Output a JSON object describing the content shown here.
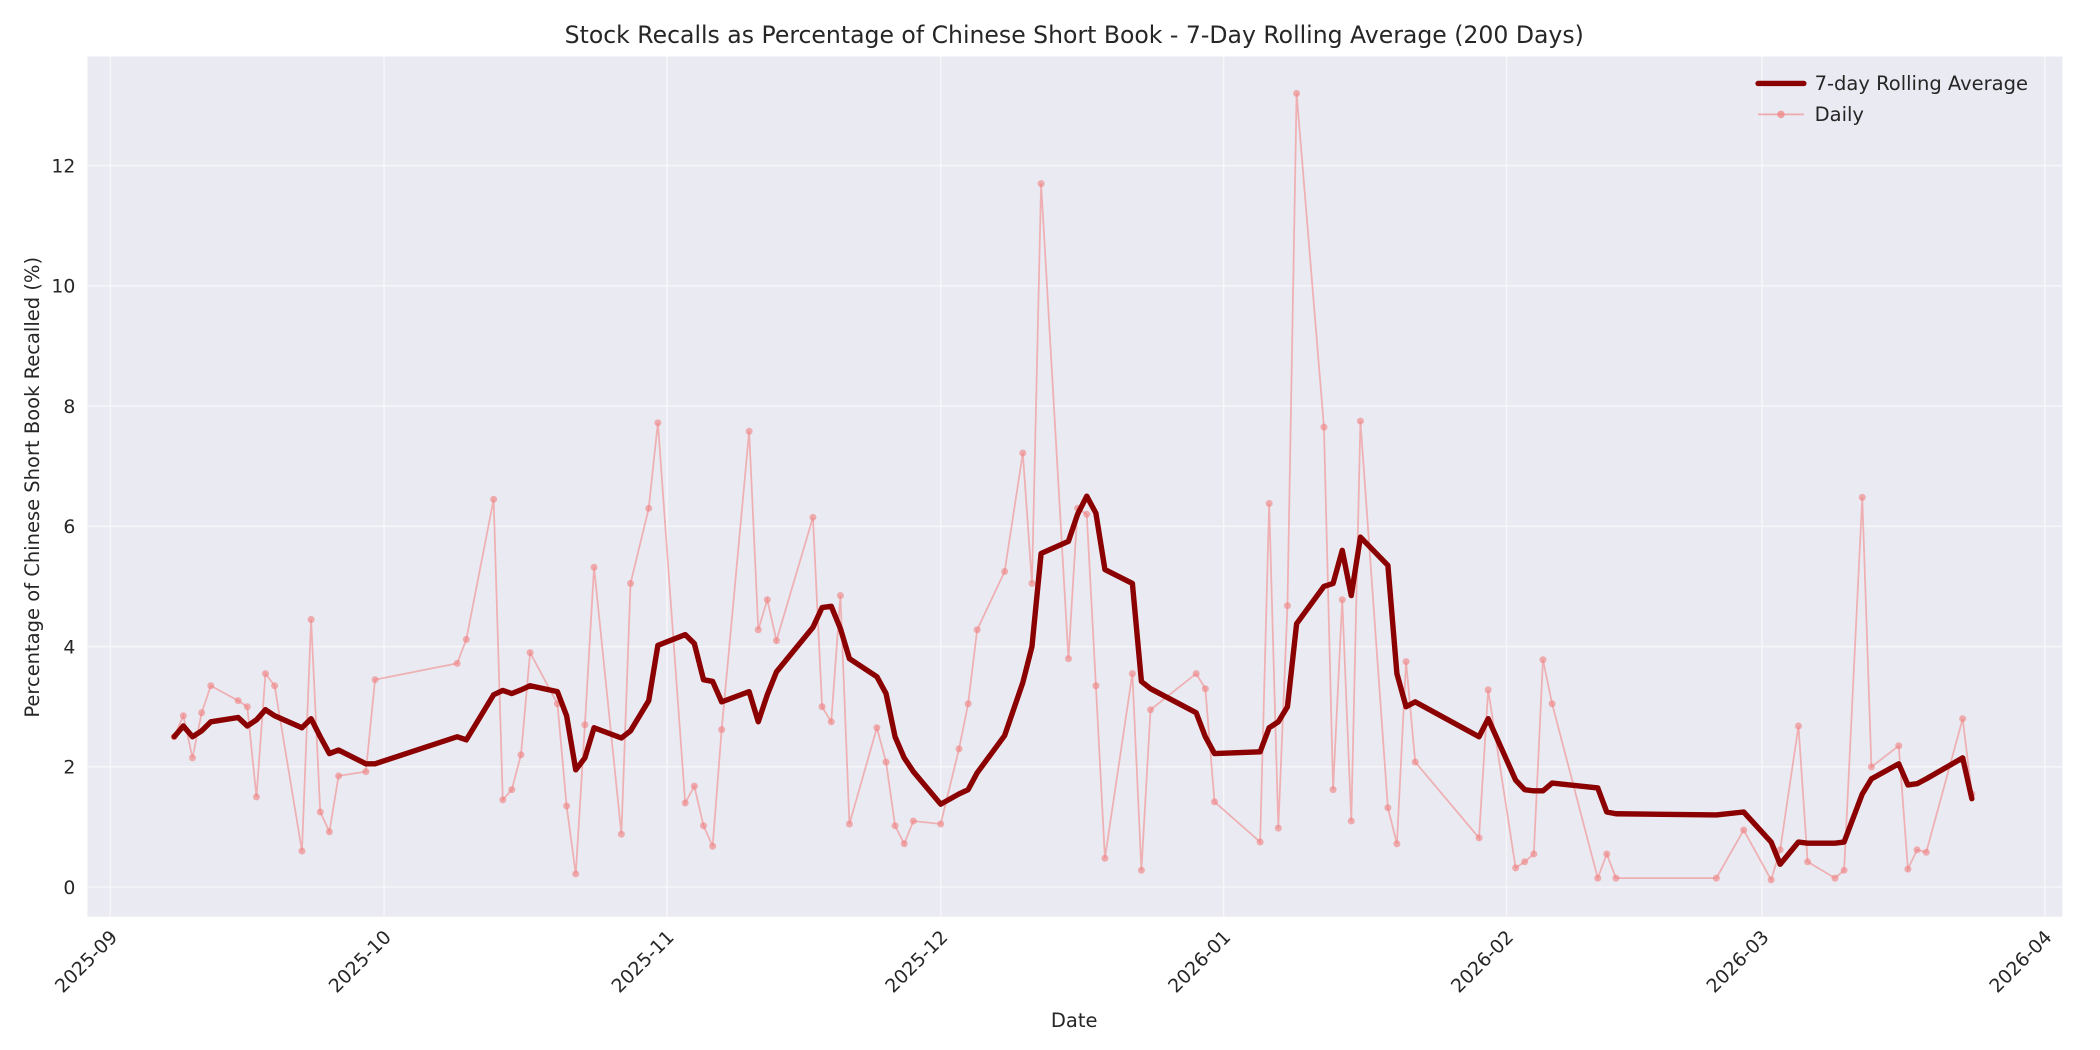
{
  "chart_data": {
    "type": "line",
    "title": "Stock Recalls as Percentage of Chinese Short Book - 7-Day Rolling Average (200 Days)",
    "xlabel": "Date",
    "ylabel": "Percentage of Chinese Short Book Recalled (%)",
    "ylim": [
      -0.5,
      13.9
    ],
    "xlim": [
      "2025-08-29",
      "2026-04-03"
    ],
    "grid": true,
    "legend_position": "upper right",
    "x_ticks": [
      "2025-09",
      "2025-10",
      "2025-11",
      "2025-12",
      "2026-01",
      "2026-02",
      "2026-03",
      "2026-04"
    ],
    "y_ticks": [
      0,
      2,
      4,
      6,
      8,
      10,
      12
    ],
    "colors": {
      "rolling": "#8b0000",
      "daily": "#f08080",
      "plot_bg": "#eaeaf2",
      "grid": "#f5f5f8"
    },
    "x": [
      "2025-09-08",
      "2025-09-09",
      "2025-09-10",
      "2025-09-11",
      "2025-09-12",
      "2025-09-15",
      "2025-09-16",
      "2025-09-17",
      "2025-09-18",
      "2025-09-19",
      "2025-09-22",
      "2025-09-23",
      "2025-09-24",
      "2025-09-25",
      "2025-09-26",
      "2025-09-29",
      "2025-09-30",
      "2025-10-09",
      "2025-10-10",
      "2025-10-13",
      "2025-10-14",
      "2025-10-15",
      "2025-10-16",
      "2025-10-17",
      "2025-10-20",
      "2025-10-21",
      "2025-10-22",
      "2025-10-23",
      "2025-10-24",
      "2025-10-27",
      "2025-10-28",
      "2025-10-30",
      "2025-10-31",
      "2025-11-03",
      "2025-11-04",
      "2025-11-05",
      "2025-11-06",
      "2025-11-07",
      "2025-11-10",
      "2025-11-11",
      "2025-11-12",
      "2025-11-13",
      "2025-11-17",
      "2025-11-18",
      "2025-11-19",
      "2025-11-20",
      "2025-11-21",
      "2025-11-24",
      "2025-11-25",
      "2025-11-26",
      "2025-11-27",
      "2025-11-28",
      "2025-12-01",
      "2025-12-03",
      "2025-12-04",
      "2025-12-05",
      "2025-12-08",
      "2025-12-10",
      "2025-12-11",
      "2025-12-12",
      "2025-12-15",
      "2025-12-16",
      "2025-12-17",
      "2025-12-18",
      "2025-12-19",
      "2025-12-22",
      "2025-12-23",
      "2025-12-24",
      "2025-12-29",
      "2025-12-30",
      "2025-12-31",
      "2026-01-05",
      "2026-01-06",
      "2026-01-07",
      "2026-01-08",
      "2026-01-09",
      "2026-01-12",
      "2026-01-13",
      "2026-01-14",
      "2026-01-15",
      "2026-01-16",
      "2026-01-19",
      "2026-01-20",
      "2026-01-21",
      "2026-01-22",
      "2026-01-29",
      "2026-01-30",
      "2026-02-02",
      "2026-02-03",
      "2026-02-04",
      "2026-02-05",
      "2026-02-06",
      "2026-02-11",
      "2026-02-12",
      "2026-02-13",
      "2026-02-24",
      "2026-02-27",
      "2026-03-02",
      "2026-03-03",
      "2026-03-05",
      "2026-03-06",
      "2026-03-09",
      "2026-03-10",
      "2026-03-12",
      "2026-03-13",
      "2026-03-16",
      "2026-03-17",
      "2026-03-18",
      "2026-03-19",
      "2026-03-23",
      "2026-03-24"
    ],
    "series": [
      {
        "name": "7-day Rolling Average",
        "values": [
          2.5,
          2.68,
          2.5,
          2.6,
          2.75,
          2.82,
          2.68,
          2.78,
          2.95,
          2.85,
          2.65,
          2.8,
          2.5,
          2.22,
          2.28,
          2.05,
          2.05,
          2.5,
          2.45,
          3.2,
          3.27,
          3.22,
          3.28,
          3.35,
          3.25,
          2.85,
          1.95,
          2.15,
          2.65,
          2.48,
          2.6,
          3.1,
          4.02,
          4.2,
          4.05,
          3.45,
          3.42,
          3.08,
          3.25,
          2.75,
          3.2,
          3.58,
          4.32,
          4.65,
          4.67,
          4.3,
          3.8,
          3.5,
          3.22,
          2.5,
          2.15,
          1.92,
          1.38,
          1.55,
          1.62,
          1.9,
          2.52,
          3.4,
          4.0,
          5.55,
          5.75,
          6.2,
          6.5,
          6.22,
          5.28,
          5.05,
          3.42,
          3.3,
          2.9,
          2.5,
          2.22,
          2.25,
          2.65,
          2.75,
          3.0,
          4.38,
          5.0,
          5.05,
          5.6,
          4.85,
          5.82,
          5.35,
          3.55,
          3.0,
          3.08,
          2.5,
          2.8,
          1.78,
          1.62,
          1.6,
          1.6,
          1.73,
          1.65,
          1.25,
          1.22,
          1.2,
          1.25,
          0.75,
          0.38,
          0.75,
          0.73,
          0.73,
          0.75,
          1.55,
          1.8,
          2.05,
          1.7,
          1.72,
          1.8,
          2.15,
          1.47
        ]
      },
      {
        "name": "Daily",
        "values": [
          2.5,
          2.85,
          2.15,
          2.9,
          3.35,
          3.1,
          3.0,
          1.5,
          3.55,
          3.35,
          0.6,
          4.45,
          1.25,
          0.92,
          1.85,
          1.92,
          3.45,
          3.72,
          4.12,
          6.45,
          1.45,
          1.62,
          2.2,
          3.9,
          3.05,
          1.35,
          0.22,
          2.7,
          5.32,
          0.88,
          5.05,
          6.3,
          7.72,
          1.4,
          1.68,
          1.02,
          0.68,
          2.62,
          7.58,
          4.28,
          4.78,
          4.1,
          6.15,
          3.0,
          2.75,
          4.85,
          1.05,
          2.65,
          2.08,
          1.02,
          0.72,
          1.1,
          1.05,
          2.3,
          3.05,
          4.28,
          5.25,
          7.22,
          5.05,
          11.7,
          3.8,
          6.3,
          6.2,
          3.35,
          0.48,
          3.55,
          0.28,
          2.95,
          3.55,
          3.3,
          1.42,
          0.75,
          6.38,
          0.98,
          4.68,
          13.2,
          7.65,
          1.62,
          4.78,
          1.1,
          7.75,
          1.32,
          0.72,
          3.75,
          2.08,
          0.82,
          3.28,
          0.32,
          0.42,
          0.55,
          3.78,
          3.05,
          0.15,
          0.55,
          0.15,
          0.15,
          0.95,
          0.12,
          0.62,
          2.68,
          0.42,
          0.15,
          0.28,
          6.48,
          2.0,
          2.35,
          0.3,
          0.62,
          0.58,
          2.8,
          1.55
        ]
      }
    ]
  },
  "legend": {
    "items": [
      {
        "label": "7-day Rolling Average"
      },
      {
        "label": "Daily"
      }
    ]
  }
}
